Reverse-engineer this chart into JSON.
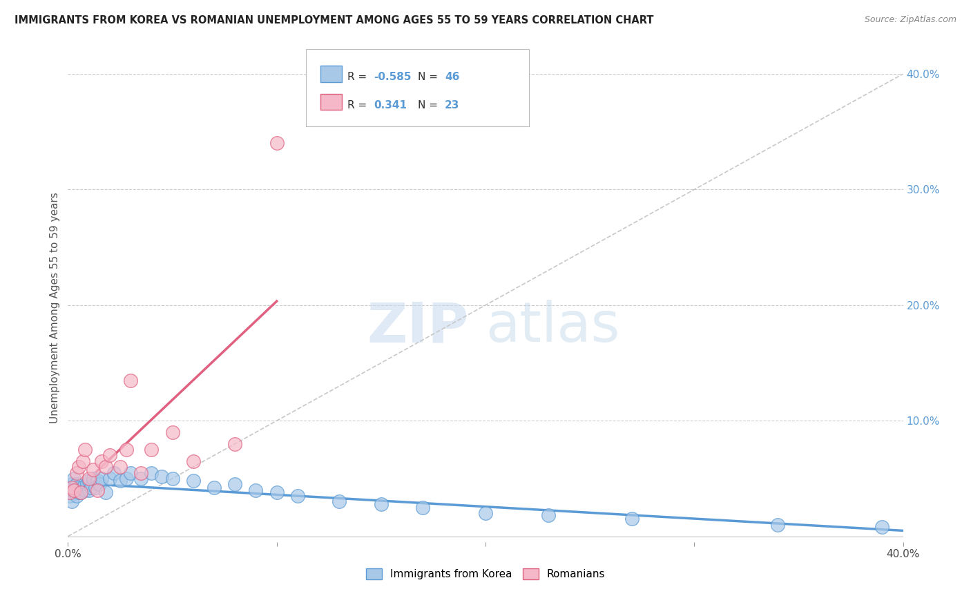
{
  "title": "IMMIGRANTS FROM KOREA VS ROMANIAN UNEMPLOYMENT AMONG AGES 55 TO 59 YEARS CORRELATION CHART",
  "source": "Source: ZipAtlas.com",
  "ylabel": "Unemployment Among Ages 55 to 59 years",
  "legend_label1": "Immigrants from Korea",
  "legend_label2": "Romanians",
  "r1": -0.585,
  "n1": 46,
  "r2": 0.341,
  "n2": 23,
  "color_korea_fill": "#a8c8e8",
  "color_korea_edge": "#5b9bd5",
  "color_romania_fill": "#f5b8c8",
  "color_romania_edge": "#e06080",
  "color_korea_line": "#5b9bd5",
  "color_romania_line": "#e06080",
  "color_dashed_line": "#c8c8c8",
  "watermark_zip": "ZIP",
  "watermark_atlas": "atlas",
  "xlim": [
    0.0,
    0.4
  ],
  "ylim": [
    -0.005,
    0.4
  ],
  "xticks": [
    0.0,
    0.1,
    0.2,
    0.3,
    0.4
  ],
  "xticklabels": [
    "0.0%",
    "",
    "",
    "",
    "40.0%"
  ],
  "right_yticks": [
    0.0,
    0.1,
    0.2,
    0.3,
    0.4
  ],
  "right_yticklabels": [
    "",
    "10.0%",
    "20.0%",
    "30.0%",
    "40.0%"
  ],
  "korea_x": [
    0.001,
    0.001,
    0.002,
    0.002,
    0.003,
    0.003,
    0.004,
    0.004,
    0.005,
    0.005,
    0.006,
    0.007,
    0.008,
    0.009,
    0.01,
    0.01,
    0.011,
    0.012,
    0.013,
    0.014,
    0.015,
    0.016,
    0.018,
    0.02,
    0.022,
    0.025,
    0.028,
    0.03,
    0.035,
    0.04,
    0.045,
    0.05,
    0.06,
    0.07,
    0.08,
    0.09,
    0.1,
    0.11,
    0.13,
    0.15,
    0.17,
    0.2,
    0.23,
    0.27,
    0.34,
    0.39
  ],
  "korea_y": [
    0.035,
    0.04,
    0.03,
    0.045,
    0.04,
    0.05,
    0.035,
    0.045,
    0.038,
    0.042,
    0.038,
    0.042,
    0.04,
    0.045,
    0.04,
    0.048,
    0.042,
    0.05,
    0.042,
    0.048,
    0.045,
    0.05,
    0.038,
    0.05,
    0.055,
    0.048,
    0.05,
    0.055,
    0.05,
    0.055,
    0.052,
    0.05,
    0.048,
    0.042,
    0.045,
    0.04,
    0.038,
    0.035,
    0.03,
    0.028,
    0.025,
    0.02,
    0.018,
    0.015,
    0.01,
    0.008
  ],
  "romania_x": [
    0.001,
    0.002,
    0.003,
    0.004,
    0.005,
    0.006,
    0.007,
    0.008,
    0.01,
    0.012,
    0.014,
    0.016,
    0.018,
    0.02,
    0.025,
    0.028,
    0.03,
    0.035,
    0.04,
    0.05,
    0.06,
    0.08,
    0.1
  ],
  "romania_y": [
    0.038,
    0.042,
    0.04,
    0.055,
    0.06,
    0.038,
    0.065,
    0.075,
    0.05,
    0.058,
    0.04,
    0.065,
    0.06,
    0.07,
    0.06,
    0.075,
    0.135,
    0.055,
    0.075,
    0.09,
    0.065,
    0.08,
    0.34
  ],
  "korea_line_x": [
    0.0,
    0.395
  ],
  "korea_line_y_intercept": 0.05,
  "korea_line_slope": -0.105,
  "romania_line_x": [
    0.001,
    0.1
  ],
  "romania_line_y_intercept": 0.028,
  "romania_line_slope": 1.35
}
